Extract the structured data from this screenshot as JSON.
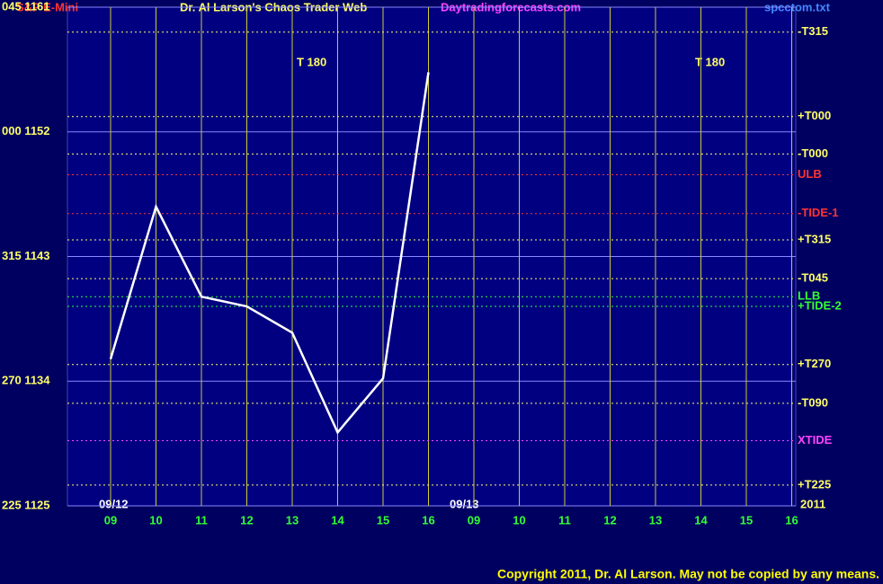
{
  "chart_data": {
    "type": "line",
    "instrument": "S&P E-Mini",
    "title": "Dr. Al Larson's Chaos Trader Web",
    "site": "Daytradingforecasts.com",
    "file": "spcctom.txt",
    "copyright": "Copyright 2011, Dr. Al Larson. May not be copied by any means.",
    "date_labels": [
      "09/12",
      "09/13"
    ],
    "year": "2011",
    "annotations": [
      "T   180",
      "T   180"
    ],
    "categories": [
      "09",
      "10",
      "11",
      "12",
      "13",
      "14",
      "15",
      "16",
      "09",
      "10",
      "11",
      "12",
      "13",
      "14",
      "15",
      "16"
    ],
    "series": [
      {
        "name": "S&P E-Mini",
        "color": "#ffffff",
        "values": [
          1135.6,
          1146.6,
          1140.1,
          1139.4,
          1137.5,
          1130.3,
          1134.2,
          1156.3,
          null,
          null,
          null,
          null,
          null,
          null,
          null,
          null
        ]
      }
    ],
    "ylim": [
      1125,
      1161
    ],
    "yticks": [
      {
        "value": 1125,
        "label": "225  1125"
      },
      {
        "value": 1134,
        "label": "270  1134"
      },
      {
        "value": 1143,
        "label": "315  1143"
      },
      {
        "value": 1152,
        "label": "000  1152"
      },
      {
        "value": 1161,
        "label": "045  1161"
      }
    ],
    "levels": [
      {
        "label": "-T315",
        "value": 1159.2,
        "color": "#ffff66"
      },
      {
        "label": "+T000",
        "value": 1153.1,
        "color": "#ffff66"
      },
      {
        "label": "-T000",
        "value": 1150.4,
        "color": "#ffff66"
      },
      {
        "label": "ULB",
        "value": 1148.9,
        "color": "#ff3333"
      },
      {
        "label": "-TIDE-1",
        "value": 1146.1,
        "color": "#ff3333"
      },
      {
        "label": "+T315",
        "value": 1144.2,
        "color": "#ffff66"
      },
      {
        "label": "-T045",
        "value": 1141.4,
        "color": "#ffff66"
      },
      {
        "label": "LLB",
        "value": 1140.1,
        "color": "#33ff33"
      },
      {
        "label": "+TIDE-2",
        "value": 1139.4,
        "color": "#33ff33"
      },
      {
        "label": "+T270",
        "value": 1135.2,
        "color": "#ffff66"
      },
      {
        "label": "-T090",
        "value": 1132.4,
        "color": "#ffff66"
      },
      {
        "label": "XTIDE",
        "value": 1129.7,
        "color": "#ff44ff"
      },
      {
        "label": "+T225",
        "value": 1126.5,
        "color": "#ffff66"
      }
    ],
    "grid": true
  }
}
